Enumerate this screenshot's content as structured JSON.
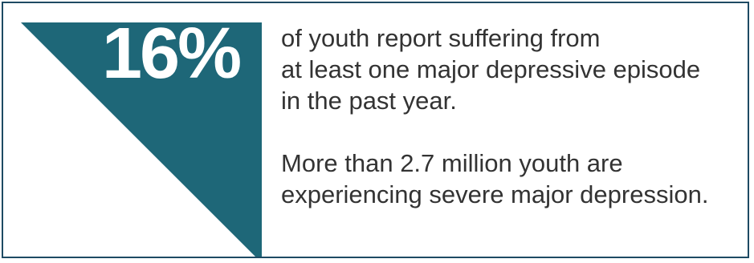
{
  "brand": {
    "accent_color": "#1e6778",
    "border_color": "#1e4a63",
    "text_color": "#333333"
  },
  "stat": {
    "value": "16%"
  },
  "statement": {
    "line1": "of youth report suffering from",
    "line2": "at least one major depressive episode",
    "line3": "in the past year."
  },
  "followup": {
    "line1": "More than 2.7 million youth are",
    "line2": "experiencing severe major depression."
  }
}
